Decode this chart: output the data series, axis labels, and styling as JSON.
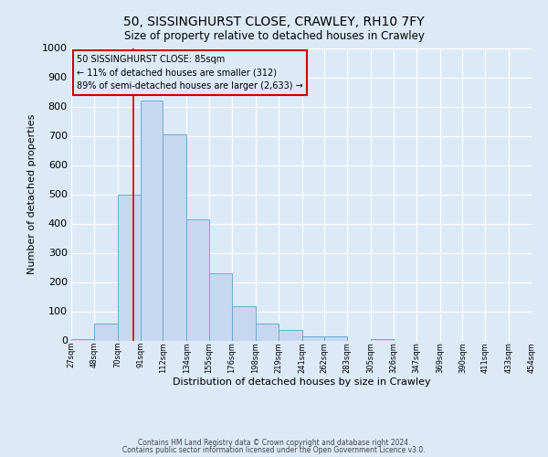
{
  "title": "50, SISSINGHURST CLOSE, CRAWLEY, RH10 7FY",
  "subtitle": "Size of property relative to detached houses in Crawley",
  "xlabel": "Distribution of detached houses by size in Crawley",
  "ylabel": "Number of detached properties",
  "bar_color": "#c5d8f0",
  "bar_edge_color": "#6aaad4",
  "bg_color": "#dce9f7",
  "grid_color": "#ffffff",
  "vline_value": 85,
  "vline_color": "#cc0000",
  "annotation_line1": "50 SISSINGHURST CLOSE: 85sqm",
  "annotation_line2": "← 11% of detached houses are smaller (312)",
  "annotation_line3": "89% of semi-detached houses are larger (2,633) →",
  "annotation_box_edgecolor": "#cc0000",
  "bin_edges": [
    27,
    48,
    70,
    91,
    112,
    134,
    155,
    176,
    198,
    219,
    241,
    262,
    283,
    305,
    326,
    347,
    369,
    390,
    411,
    433,
    454
  ],
  "bin_heights": [
    5,
    57,
    500,
    820,
    705,
    415,
    230,
    118,
    57,
    35,
    13,
    13,
    0,
    5,
    0,
    0,
    0,
    0,
    0,
    0
  ],
  "tick_labels": [
    "27sqm",
    "48sqm",
    "70sqm",
    "91sqm",
    "112sqm",
    "134sqm",
    "155sqm",
    "176sqm",
    "198sqm",
    "219sqm",
    "241sqm",
    "262sqm",
    "283sqm",
    "305sqm",
    "326sqm",
    "347sqm",
    "369sqm",
    "390sqm",
    "411sqm",
    "433sqm",
    "454sqm"
  ],
  "ylim": [
    0,
    1000
  ],
  "yticks": [
    0,
    100,
    200,
    300,
    400,
    500,
    600,
    700,
    800,
    900,
    1000
  ],
  "footer_line1": "Contains HM Land Registry data © Crown copyright and database right 2024.",
  "footer_line2": "Contains public sector information licensed under the Open Government Licence v3.0."
}
